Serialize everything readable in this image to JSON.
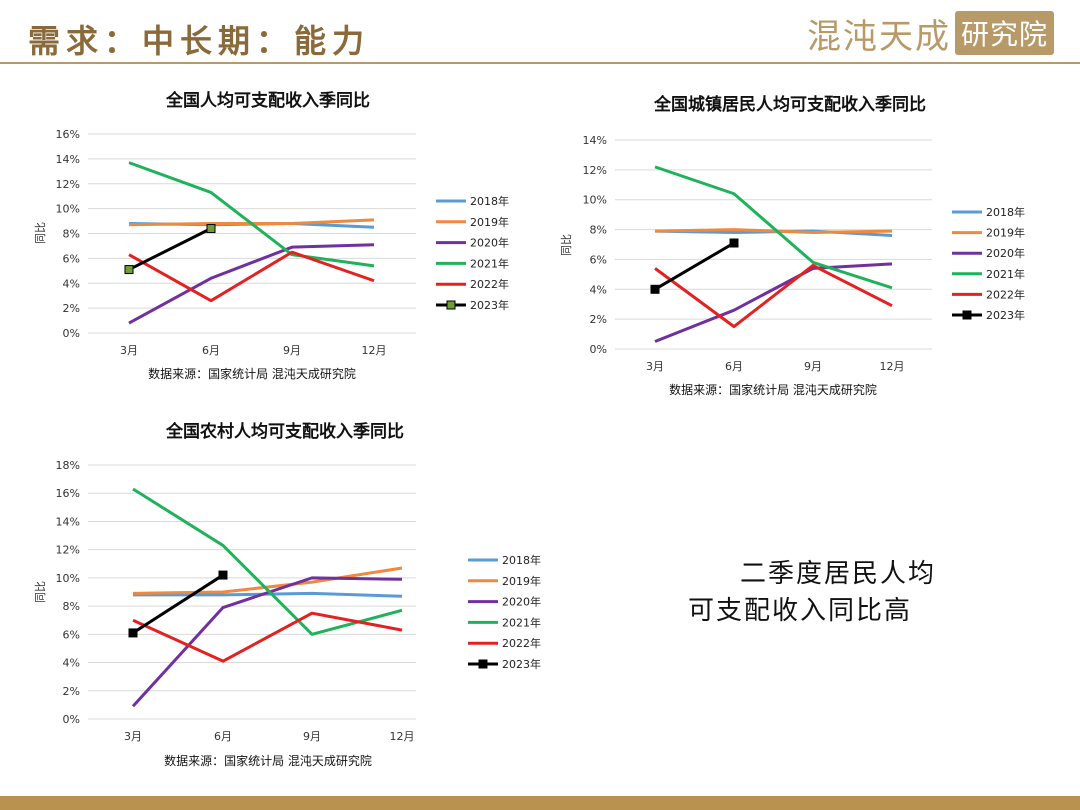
{
  "header": {
    "title": "需求：中长期：能力",
    "logo_text": "混沌天成",
    "logo_box": "研究院"
  },
  "note": {
    "line1": "二季度居民人均",
    "line2": "可支配收入同比高"
  },
  "colors": {
    "2018年": "#5b9bd5",
    "2019年": "#ed8a3f",
    "2020年": "#7030a0",
    "2021年": "#1fb25a",
    "2022年": "#e42121",
    "2023年": "#000000",
    "accent": "#b89a68"
  },
  "chart_data": [
    {
      "type": "line",
      "title": "全国人均可支配收入季同比",
      "ylabel": "同比",
      "source": "数据来源：国家统计局 混沌天成研究院",
      "categories": [
        "3月",
        "6月",
        "9月",
        "12月"
      ],
      "ylim": [
        0,
        16
      ],
      "yticks": [
        "0%",
        "2%",
        "4%",
        "6%",
        "8%",
        "10%",
        "12%",
        "14%",
        "16%"
      ],
      "grid": true,
      "legend": "right",
      "series": [
        {
          "name": "2018年",
          "values": [
            8.8,
            8.7,
            8.8,
            8.5
          ]
        },
        {
          "name": "2019年",
          "values": [
            8.7,
            8.8,
            8.8,
            9.1
          ]
        },
        {
          "name": "2020年",
          "values": [
            0.8,
            4.4,
            6.9,
            7.1
          ]
        },
        {
          "name": "2021年",
          "values": [
            13.7,
            11.3,
            6.3,
            5.4
          ]
        },
        {
          "name": "2022年",
          "values": [
            6.3,
            2.6,
            6.5,
            4.2
          ]
        },
        {
          "name": "2023年",
          "values": [
            5.1,
            8.4,
            null,
            null
          ]
        }
      ]
    },
    {
      "type": "line",
      "title": "全国城镇居民人均可支配收入季同比",
      "ylabel": "同比",
      "source": "数据来源：国家统计局 混沌天成研究院",
      "categories": [
        "3月",
        "6月",
        "9月",
        "12月"
      ],
      "ylim": [
        0,
        14
      ],
      "yticks": [
        "0%",
        "2%",
        "4%",
        "6%",
        "8%",
        "10%",
        "12%",
        "14%"
      ],
      "grid": true,
      "legend": "right",
      "series": [
        {
          "name": "2018年",
          "values": [
            7.9,
            7.8,
            7.9,
            7.6
          ]
        },
        {
          "name": "2019年",
          "values": [
            7.9,
            8.0,
            7.8,
            7.9
          ]
        },
        {
          "name": "2020年",
          "values": [
            0.5,
            2.6,
            5.4,
            5.7
          ]
        },
        {
          "name": "2021年",
          "values": [
            12.2,
            10.4,
            5.8,
            4.1
          ]
        },
        {
          "name": "2022年",
          "values": [
            5.4,
            1.5,
            5.6,
            2.9
          ]
        },
        {
          "name": "2023年",
          "values": [
            4.0,
            7.1,
            null,
            null
          ]
        }
      ]
    },
    {
      "type": "line",
      "title": "全国农村人均可支配收入季同比",
      "ylabel": "同比",
      "source": "数据来源：国家统计局 混沌天成研究院",
      "categories": [
        "3月",
        "6月",
        "9月",
        "12月"
      ],
      "ylim": [
        0,
        18
      ],
      "yticks": [
        "0%",
        "2%",
        "4%",
        "6%",
        "8%",
        "10%",
        "12%",
        "14%",
        "16%",
        "18%"
      ],
      "grid": true,
      "legend": "right",
      "series": [
        {
          "name": "2018年",
          "values": [
            8.8,
            8.8,
            8.9,
            8.7
          ]
        },
        {
          "name": "2019年",
          "values": [
            8.9,
            9.0,
            9.7,
            10.7
          ]
        },
        {
          "name": "2020年",
          "values": [
            0.9,
            7.9,
            10.0,
            9.9
          ]
        },
        {
          "name": "2021年",
          "values": [
            16.3,
            12.3,
            6.0,
            7.7
          ]
        },
        {
          "name": "2022年",
          "values": [
            7.0,
            4.1,
            7.5,
            6.3
          ]
        },
        {
          "name": "2023年",
          "values": [
            6.1,
            10.2,
            null,
            null
          ]
        }
      ]
    }
  ]
}
